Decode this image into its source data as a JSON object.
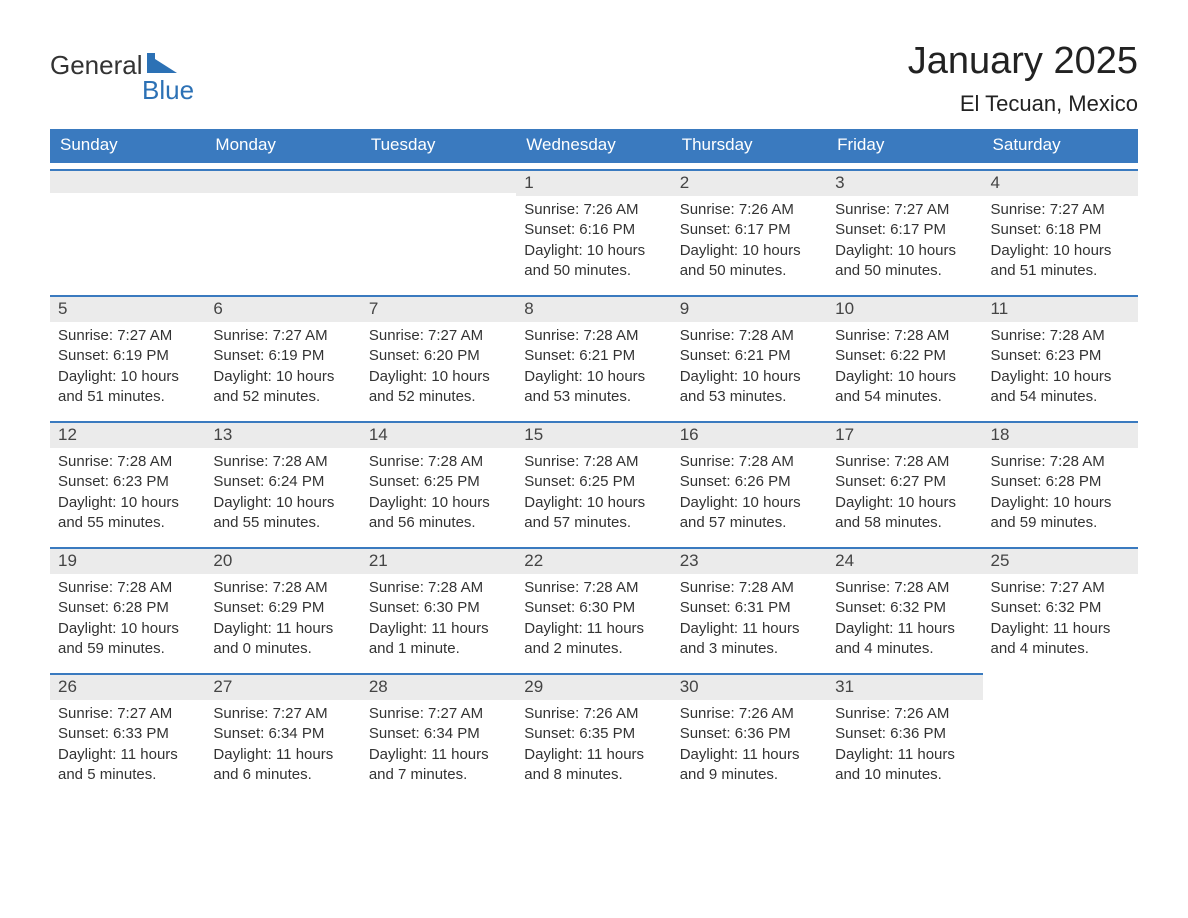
{
  "logo": {
    "general": "General",
    "blue": "Blue"
  },
  "title": "January 2025",
  "location": "El Tecuan, Mexico",
  "colors": {
    "header_bg": "#3a7abf",
    "header_text": "#ffffff",
    "daynum_bg": "#ebebeb",
    "daynum_border": "#3a7abf",
    "body_text": "#333333",
    "logo_blue": "#2c71b5",
    "page_bg": "#ffffff"
  },
  "typography": {
    "title_fontsize": 38,
    "location_fontsize": 22,
    "weekday_fontsize": 17,
    "daynum_fontsize": 17,
    "body_fontsize": 15
  },
  "weekdays": [
    "Sunday",
    "Monday",
    "Tuesday",
    "Wednesday",
    "Thursday",
    "Friday",
    "Saturday"
  ],
  "weeks": [
    [
      null,
      null,
      null,
      {
        "n": "1",
        "sr": "Sunrise: 7:26 AM",
        "ss": "Sunset: 6:16 PM",
        "d1": "Daylight: 10 hours",
        "d2": "and 50 minutes."
      },
      {
        "n": "2",
        "sr": "Sunrise: 7:26 AM",
        "ss": "Sunset: 6:17 PM",
        "d1": "Daylight: 10 hours",
        "d2": "and 50 minutes."
      },
      {
        "n": "3",
        "sr": "Sunrise: 7:27 AM",
        "ss": "Sunset: 6:17 PM",
        "d1": "Daylight: 10 hours",
        "d2": "and 50 minutes."
      },
      {
        "n": "4",
        "sr": "Sunrise: 7:27 AM",
        "ss": "Sunset: 6:18 PM",
        "d1": "Daylight: 10 hours",
        "d2": "and 51 minutes."
      }
    ],
    [
      {
        "n": "5",
        "sr": "Sunrise: 7:27 AM",
        "ss": "Sunset: 6:19 PM",
        "d1": "Daylight: 10 hours",
        "d2": "and 51 minutes."
      },
      {
        "n": "6",
        "sr": "Sunrise: 7:27 AM",
        "ss": "Sunset: 6:19 PM",
        "d1": "Daylight: 10 hours",
        "d2": "and 52 minutes."
      },
      {
        "n": "7",
        "sr": "Sunrise: 7:27 AM",
        "ss": "Sunset: 6:20 PM",
        "d1": "Daylight: 10 hours",
        "d2": "and 52 minutes."
      },
      {
        "n": "8",
        "sr": "Sunrise: 7:28 AM",
        "ss": "Sunset: 6:21 PM",
        "d1": "Daylight: 10 hours",
        "d2": "and 53 minutes."
      },
      {
        "n": "9",
        "sr": "Sunrise: 7:28 AM",
        "ss": "Sunset: 6:21 PM",
        "d1": "Daylight: 10 hours",
        "d2": "and 53 minutes."
      },
      {
        "n": "10",
        "sr": "Sunrise: 7:28 AM",
        "ss": "Sunset: 6:22 PM",
        "d1": "Daylight: 10 hours",
        "d2": "and 54 minutes."
      },
      {
        "n": "11",
        "sr": "Sunrise: 7:28 AM",
        "ss": "Sunset: 6:23 PM",
        "d1": "Daylight: 10 hours",
        "d2": "and 54 minutes."
      }
    ],
    [
      {
        "n": "12",
        "sr": "Sunrise: 7:28 AM",
        "ss": "Sunset: 6:23 PM",
        "d1": "Daylight: 10 hours",
        "d2": "and 55 minutes."
      },
      {
        "n": "13",
        "sr": "Sunrise: 7:28 AM",
        "ss": "Sunset: 6:24 PM",
        "d1": "Daylight: 10 hours",
        "d2": "and 55 minutes."
      },
      {
        "n": "14",
        "sr": "Sunrise: 7:28 AM",
        "ss": "Sunset: 6:25 PM",
        "d1": "Daylight: 10 hours",
        "d2": "and 56 minutes."
      },
      {
        "n": "15",
        "sr": "Sunrise: 7:28 AM",
        "ss": "Sunset: 6:25 PM",
        "d1": "Daylight: 10 hours",
        "d2": "and 57 minutes."
      },
      {
        "n": "16",
        "sr": "Sunrise: 7:28 AM",
        "ss": "Sunset: 6:26 PM",
        "d1": "Daylight: 10 hours",
        "d2": "and 57 minutes."
      },
      {
        "n": "17",
        "sr": "Sunrise: 7:28 AM",
        "ss": "Sunset: 6:27 PM",
        "d1": "Daylight: 10 hours",
        "d2": "and 58 minutes."
      },
      {
        "n": "18",
        "sr": "Sunrise: 7:28 AM",
        "ss": "Sunset: 6:28 PM",
        "d1": "Daylight: 10 hours",
        "d2": "and 59 minutes."
      }
    ],
    [
      {
        "n": "19",
        "sr": "Sunrise: 7:28 AM",
        "ss": "Sunset: 6:28 PM",
        "d1": "Daylight: 10 hours",
        "d2": "and 59 minutes."
      },
      {
        "n": "20",
        "sr": "Sunrise: 7:28 AM",
        "ss": "Sunset: 6:29 PM",
        "d1": "Daylight: 11 hours",
        "d2": "and 0 minutes."
      },
      {
        "n": "21",
        "sr": "Sunrise: 7:28 AM",
        "ss": "Sunset: 6:30 PM",
        "d1": "Daylight: 11 hours",
        "d2": "and 1 minute."
      },
      {
        "n": "22",
        "sr": "Sunrise: 7:28 AM",
        "ss": "Sunset: 6:30 PM",
        "d1": "Daylight: 11 hours",
        "d2": "and 2 minutes."
      },
      {
        "n": "23",
        "sr": "Sunrise: 7:28 AM",
        "ss": "Sunset: 6:31 PM",
        "d1": "Daylight: 11 hours",
        "d2": "and 3 minutes."
      },
      {
        "n": "24",
        "sr": "Sunrise: 7:28 AM",
        "ss": "Sunset: 6:32 PM",
        "d1": "Daylight: 11 hours",
        "d2": "and 4 minutes."
      },
      {
        "n": "25",
        "sr": "Sunrise: 7:27 AM",
        "ss": "Sunset: 6:32 PM",
        "d1": "Daylight: 11 hours",
        "d2": "and 4 minutes."
      }
    ],
    [
      {
        "n": "26",
        "sr": "Sunrise: 7:27 AM",
        "ss": "Sunset: 6:33 PM",
        "d1": "Daylight: 11 hours",
        "d2": "and 5 minutes."
      },
      {
        "n": "27",
        "sr": "Sunrise: 7:27 AM",
        "ss": "Sunset: 6:34 PM",
        "d1": "Daylight: 11 hours",
        "d2": "and 6 minutes."
      },
      {
        "n": "28",
        "sr": "Sunrise: 7:27 AM",
        "ss": "Sunset: 6:34 PM",
        "d1": "Daylight: 11 hours",
        "d2": "and 7 minutes."
      },
      {
        "n": "29",
        "sr": "Sunrise: 7:26 AM",
        "ss": "Sunset: 6:35 PM",
        "d1": "Daylight: 11 hours",
        "d2": "and 8 minutes."
      },
      {
        "n": "30",
        "sr": "Sunrise: 7:26 AM",
        "ss": "Sunset: 6:36 PM",
        "d1": "Daylight: 11 hours",
        "d2": "and 9 minutes."
      },
      {
        "n": "31",
        "sr": "Sunrise: 7:26 AM",
        "ss": "Sunset: 6:36 PM",
        "d1": "Daylight: 11 hours",
        "d2": "and 10 minutes."
      },
      null
    ]
  ]
}
